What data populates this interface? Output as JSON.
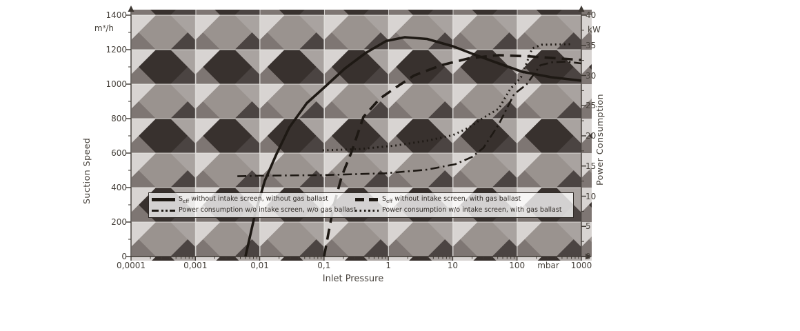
{
  "accent_colors": {
    "curve": "#1e1914",
    "axis": "#3e3833",
    "pattern_dark": "#38312e",
    "pattern_light": "#d8d4d2",
    "legend_bg": "rgba(255,255,255,0.78)"
  },
  "axes": {
    "x": {
      "title": "Inlet Pressure",
      "unit": "mbar",
      "scale": "log",
      "min": 0.0001,
      "max": 1000,
      "tick_labels": [
        "0,0001",
        "0,001",
        "0,01",
        "0,1",
        "1",
        "10",
        "100",
        "1000"
      ],
      "tick_values": [
        0.0001,
        0.001,
        0.01,
        0.1,
        1,
        10,
        100,
        1000
      ]
    },
    "y_left": {
      "title": "Suction Speed",
      "unit": "m³/h",
      "min": 0,
      "max": 1400,
      "tick_step": 200,
      "tick_values": [
        0,
        200,
        400,
        600,
        800,
        1000,
        1200,
        1400
      ]
    },
    "y_right": {
      "title": "Power Consumption",
      "unit": "kW",
      "min": 0,
      "max": 40,
      "tick_step": 5,
      "tick_values": [
        0,
        5,
        10,
        15,
        20,
        25,
        30,
        35,
        40
      ]
    }
  },
  "legend": {
    "items": [
      {
        "marker": "solid",
        "sym": "S",
        "sub": "eff",
        "text": " without intake screen, without gas ballast"
      },
      {
        "marker": "dashed",
        "sym": "S",
        "sub": "eff",
        "text": " without intake screen, with gas ballast"
      },
      {
        "marker": "dashdot",
        "sym": "",
        "sub": "",
        "text": "Power consumption w/o intake screen, w/o gas ballast"
      },
      {
        "marker": "dotted",
        "sym": "",
        "sub": "",
        "text": "Power consumption w/o intake screen, with gas ballast"
      }
    ]
  },
  "chart_data": {
    "type": "line",
    "x_axis": {
      "label": "Inlet Pressure",
      "unit": "mbar",
      "scale": "log",
      "range": [
        0.0001,
        1000
      ],
      "grid": true
    },
    "y_left_axis": {
      "label": "Suction Speed",
      "unit": "m3/h",
      "range": [
        0,
        1400
      ]
    },
    "y_right_axis": {
      "label": "Power Consumption",
      "unit": "kW",
      "range": [
        0,
        40
      ]
    },
    "legend_position": "inside-bottom",
    "series": [
      {
        "name": "Seff without intake screen, without gas ballast",
        "axis": "left",
        "style": "solid",
        "points": [
          [
            0.006,
            0
          ],
          [
            0.0085,
            250
          ],
          [
            0.012,
            440
          ],
          [
            0.018,
            590
          ],
          [
            0.029,
            750
          ],
          [
            0.054,
            890
          ],
          [
            0.1,
            980
          ],
          [
            0.21,
            1090
          ],
          [
            0.44,
            1180
          ],
          [
            0.92,
            1250
          ],
          [
            1.8,
            1272
          ],
          [
            4,
            1262
          ],
          [
            10,
            1220
          ],
          [
            23,
            1168
          ],
          [
            52,
            1120
          ],
          [
            120,
            1072
          ],
          [
            340,
            1040
          ],
          [
            1000,
            1020
          ]
        ]
      },
      {
        "name": "Seff without intake screen, with gas ballast",
        "axis": "left",
        "style": "dashed",
        "points": [
          [
            0.1,
            0
          ],
          [
            0.14,
            290
          ],
          [
            0.19,
            470
          ],
          [
            0.27,
            610
          ],
          [
            0.41,
            810
          ],
          [
            0.73,
            915
          ],
          [
            1.3,
            980
          ],
          [
            2.5,
            1050
          ],
          [
            6.7,
            1110
          ],
          [
            18,
            1150
          ],
          [
            52,
            1168
          ],
          [
            170,
            1160
          ],
          [
            1000,
            1140
          ]
        ]
      },
      {
        "name": "Power consumption w/o intake screen, w/o gas ballast",
        "axis": "right",
        "style": "dashdot",
        "points": [
          [
            0.0045,
            13.3
          ],
          [
            0.01,
            13.4
          ],
          [
            0.1,
            13.5
          ],
          [
            0.9,
            13.8
          ],
          [
            4,
            14.4
          ],
          [
            11,
            15.3
          ],
          [
            20,
            16.5
          ],
          [
            30,
            18.0
          ],
          [
            52,
            21.9
          ],
          [
            90,
            26.9
          ],
          [
            140,
            28.5
          ],
          [
            230,
            31.7
          ],
          [
            350,
            32.2
          ],
          [
            600,
            32.3
          ],
          [
            1000,
            32.0
          ]
        ]
      },
      {
        "name": "Power consumption w/o intake screen, with gas ballast",
        "axis": "right",
        "style": "dotted",
        "points": [
          [
            0.095,
            17.6
          ],
          [
            0.35,
            17.8
          ],
          [
            1.3,
            18.4
          ],
          [
            4,
            19.2
          ],
          [
            10,
            20.1
          ],
          [
            18,
            21.4
          ],
          [
            29,
            22.9
          ],
          [
            52,
            24.5
          ],
          [
            78,
            27.7
          ],
          [
            115,
            29.7
          ],
          [
            146,
            32.5
          ],
          [
            172,
            34.5
          ],
          [
            240,
            35.1
          ],
          [
            720,
            35.2
          ]
        ]
      }
    ]
  }
}
